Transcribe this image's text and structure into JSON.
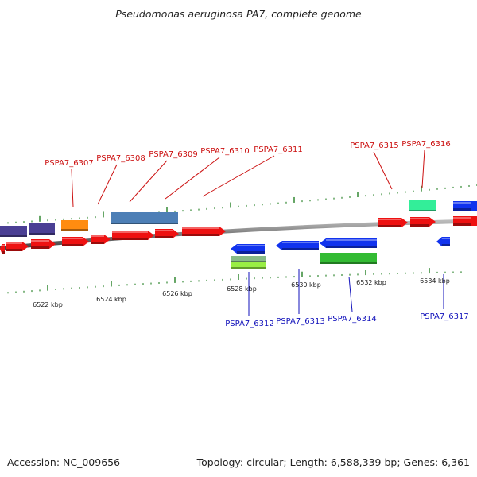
{
  "title": "Pseudomonas aeruginosa PA7, complete genome",
  "accession": "Accession: NC_009656",
  "summary": "Topology: circular; Length: 6,588,339 bp; Genes: 6,361",
  "colors": {
    "red": "#ee1111",
    "blue": "#1133ee",
    "purple": "#4a3f94",
    "orange": "#ff8c10",
    "steelblue": "#4d7fb6",
    "teal": "#33ee99",
    "green": "#33bb33",
    "lightgreen": "#99ee44",
    "sage": "#88bb88",
    "tick": "#338833",
    "backbone": "#888888",
    "label_top": "#cc1111",
    "label_bottom": "#1111bb"
  },
  "ticks": [
    "6522 kbp",
    "6524 kbp",
    "6526 kbp",
    "6528 kbp",
    "6530 kbp",
    "6532 kbp",
    "6534 kbp"
  ],
  "labels_top": [
    "PSPA7_6307",
    "PSPA7_6308",
    "PSPA7_6309",
    "PSPA7_6310",
    "PSPA7_6311",
    "PSPA7_6315",
    "PSPA7_6316"
  ],
  "labels_bottom": [
    "PSPA7_6312",
    "PSPA7_6313",
    "PSPA7_6314",
    "PSPA7_6317"
  ]
}
